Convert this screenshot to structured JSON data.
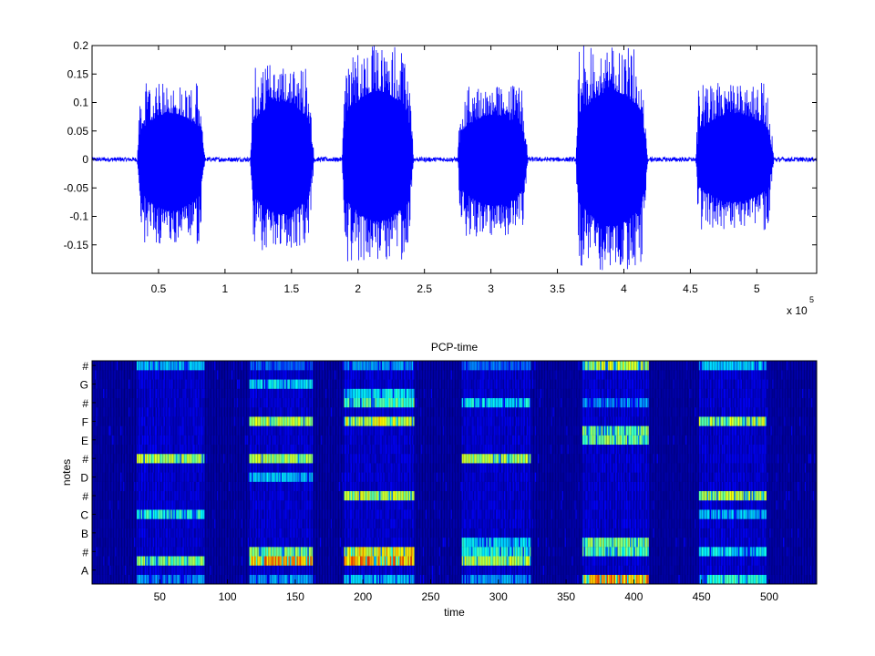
{
  "chart_data": [
    {
      "type": "line",
      "title": "",
      "xlabel": "",
      "ylabel": "",
      "xlim": [
        0,
        5.45
      ],
      "ylim": [
        -0.2,
        0.2
      ],
      "x_exponent_label": "x 10",
      "x_exponent_power": "5",
      "xticks": [
        0.5,
        1,
        1.5,
        2,
        2.5,
        3,
        3.5,
        4,
        4.5,
        5
      ],
      "xtick_labels": [
        "0.5",
        "1",
        "1.5",
        "2",
        "2.5",
        "3",
        "3.5",
        "4",
        "4.5",
        "5"
      ],
      "yticks": [
        0.2,
        0.15,
        0.1,
        0.05,
        0,
        -0.05,
        -0.1,
        -0.15
      ],
      "ytick_labels": [
        "0.2",
        "0.15",
        "0.1",
        "0.05",
        "0",
        "-0.05",
        "-0.1",
        "-0.15"
      ],
      "line_color": "#0000ff",
      "series": [
        {
          "bursts": [
            {
              "start": 0.34,
              "end": 0.85,
              "peak_pos": 0.135,
              "peak_neg": -0.15
            },
            {
              "start": 1.19,
              "end": 1.67,
              "peak_pos": 0.17,
              "peak_neg": -0.16
            },
            {
              "start": 1.88,
              "end": 2.42,
              "peak_pos": 0.2,
              "peak_neg": -0.18
            },
            {
              "start": 2.75,
              "end": 3.28,
              "peak_pos": 0.13,
              "peak_neg": -0.135
            },
            {
              "start": 3.64,
              "end": 4.18,
              "peak_pos": 0.2,
              "peak_neg": -0.195
            },
            {
              "start": 4.54,
              "end": 5.13,
              "peak_pos": 0.135,
              "peak_neg": -0.125
            }
          ],
          "noise_level": 0.004
        }
      ]
    },
    {
      "type": "heatmap",
      "title": "PCP-time",
      "xlabel": "time",
      "ylabel": "notes",
      "xlim": [
        0,
        535
      ],
      "xticks": [
        50,
        100,
        150,
        200,
        250,
        300,
        350,
        400,
        450,
        500
      ],
      "xtick_labels": [
        "50",
        "100",
        "150",
        "200",
        "250",
        "300",
        "350",
        "400",
        "450",
        "500"
      ],
      "rows": 24,
      "ytick_labels": [
        "#",
        "G",
        "#",
        "F",
        "E",
        "#",
        "D",
        "#",
        "C",
        "B",
        "#",
        "A"
      ],
      "colormap": [
        "#00008f",
        "#0000ff",
        "#00ffff",
        "#ffff00",
        "#ff0000"
      ],
      "background_color": "#00006a",
      "segments": [
        {
          "start": 33,
          "end": 82,
          "active_rows": [
            {
              "row": 23,
              "level": 0.5
            },
            {
              "row": 13,
              "level": 0.75
            },
            {
              "row": 7,
              "level": 0.6
            },
            {
              "row": 2,
              "level": 0.7
            },
            {
              "row": 0,
              "level": 0.45
            }
          ]
        },
        {
          "start": 116,
          "end": 162,
          "active_rows": [
            {
              "row": 23,
              "level": 0.4
            },
            {
              "row": 21,
              "level": 0.55
            },
            {
              "row": 17,
              "level": 0.75
            },
            {
              "row": 13,
              "level": 0.75
            },
            {
              "row": 11,
              "level": 0.5
            },
            {
              "row": 3,
              "level": 0.7
            },
            {
              "row": 2,
              "level": 0.95
            },
            {
              "row": 0,
              "level": 0.45
            }
          ]
        },
        {
          "start": 186,
          "end": 237,
          "active_rows": [
            {
              "row": 23,
              "level": 0.45
            },
            {
              "row": 20,
              "level": 0.55
            },
            {
              "row": 19,
              "level": 0.65
            },
            {
              "row": 17,
              "level": 0.8
            },
            {
              "row": 9,
              "level": 0.75
            },
            {
              "row": 3,
              "level": 0.85
            },
            {
              "row": 2,
              "level": 0.95
            },
            {
              "row": 0,
              "level": 0.5
            }
          ]
        },
        {
          "start": 273,
          "end": 323,
          "active_rows": [
            {
              "row": 23,
              "level": 0.4
            },
            {
              "row": 19,
              "level": 0.55
            },
            {
              "row": 13,
              "level": 0.75
            },
            {
              "row": 4,
              "level": 0.55
            },
            {
              "row": 3,
              "level": 0.6
            },
            {
              "row": 2,
              "level": 0.75
            },
            {
              "row": 0,
              "level": 0.45
            }
          ]
        },
        {
          "start": 362,
          "end": 410,
          "active_rows": [
            {
              "row": 23,
              "level": 0.75
            },
            {
              "row": 19,
              "level": 0.45
            },
            {
              "row": 16,
              "level": 0.7
            },
            {
              "row": 15,
              "level": 0.7
            },
            {
              "row": 4,
              "level": 0.7
            },
            {
              "row": 3,
              "level": 0.65
            },
            {
              "row": 0,
              "level": 0.95
            }
          ]
        },
        {
          "start": 448,
          "end": 497,
          "active_rows": [
            {
              "row": 23,
              "level": 0.5
            },
            {
              "row": 17,
              "level": 0.75
            },
            {
              "row": 9,
              "level": 0.75
            },
            {
              "row": 7,
              "level": 0.5
            },
            {
              "row": 3,
              "level": 0.55
            },
            {
              "row": 0,
              "level": 0.6
            }
          ]
        }
      ]
    }
  ]
}
